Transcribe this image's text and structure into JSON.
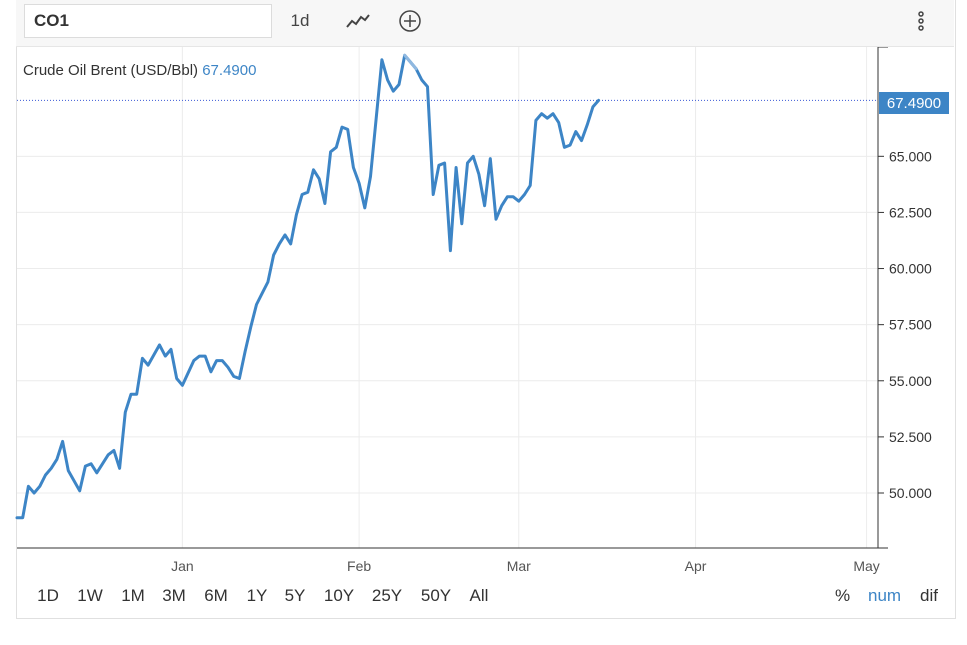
{
  "toolbar": {
    "symbol": "CO1",
    "interval": "1d",
    "chart_type_icon": "line-chart-icon",
    "add_icon": "plus-circle-icon",
    "menu_icon": "vertical-dots-icon"
  },
  "legend": {
    "instrument": "Crude Oil Brent (USD/Bbl)",
    "last_value": "67.4900"
  },
  "price_tag": "67.4900",
  "ranges": [
    "1D",
    "1W",
    "1M",
    "3M",
    "6M",
    "1Y",
    "5Y",
    "10Y",
    "25Y",
    "50Y",
    "All"
  ],
  "modes": {
    "percent": "%",
    "num": "num",
    "dif": "dif"
  },
  "colors": {
    "line": "#3d85c6",
    "line_highlight": "#8fb8e0",
    "grid": "#ececec",
    "price_line": "#3d5ad6"
  },
  "chart_data": {
    "type": "line",
    "title": "Crude Oil Brent (USD/Bbl)",
    "xlabel": "",
    "ylabel": "",
    "x_ticks": [
      {
        "label": "Jan",
        "date": "2021-01-01"
      },
      {
        "label": "Feb",
        "date": "2021-02-01"
      },
      {
        "label": "Mar",
        "date": "2021-03-01"
      },
      {
        "label": "Apr",
        "date": "2021-04-01"
      },
      {
        "label": "May",
        "date": "2021-05-01"
      }
    ],
    "x_range": [
      "2020-12-03",
      "2021-05-03"
    ],
    "y_ticks": [
      "50.000",
      "52.500",
      "55.000",
      "57.500",
      "60.000",
      "62.500",
      "65.000"
    ],
    "ylim": [
      47.55,
      69.87
    ],
    "grid": true,
    "last_price": 67.49,
    "series": [
      {
        "values": [
          [
            "2020-12-03",
            48.9
          ],
          [
            "2020-12-04",
            48.9
          ],
          [
            "2020-12-05",
            50.3
          ],
          [
            "2020-12-06",
            50.0
          ],
          [
            "2020-12-07",
            50.3
          ],
          [
            "2020-12-08",
            50.8
          ],
          [
            "2020-12-09",
            51.1
          ],
          [
            "2020-12-10",
            51.5
          ],
          [
            "2020-12-11",
            52.3
          ],
          [
            "2020-12-12",
            51.0
          ],
          [
            "2020-12-14",
            50.1
          ],
          [
            "2020-12-15",
            51.2
          ],
          [
            "2020-12-16",
            51.3
          ],
          [
            "2020-12-17",
            50.9
          ],
          [
            "2020-12-18",
            51.3
          ],
          [
            "2020-12-19",
            51.7
          ],
          [
            "2020-12-20",
            51.9
          ],
          [
            "2020-12-21",
            51.1
          ],
          [
            "2020-12-22",
            53.6
          ],
          [
            "2020-12-23",
            54.4
          ],
          [
            "2020-12-24",
            54.4
          ],
          [
            "2020-12-25",
            56.0
          ],
          [
            "2020-12-26",
            55.7
          ],
          [
            "2020-12-28",
            56.6
          ],
          [
            "2020-12-29",
            56.1
          ],
          [
            "2020-12-30",
            56.4
          ],
          [
            "2020-12-31",
            55.1
          ],
          [
            "2021-01-01",
            54.8
          ],
          [
            "2021-01-03",
            55.9
          ],
          [
            "2021-01-04",
            56.1
          ],
          [
            "2021-01-05",
            56.1
          ],
          [
            "2021-01-06",
            55.4
          ],
          [
            "2021-01-07",
            55.9
          ],
          [
            "2021-01-08",
            55.9
          ],
          [
            "2021-01-09",
            55.6
          ],
          [
            "2021-01-10",
            55.2
          ],
          [
            "2021-01-11",
            55.1
          ],
          [
            "2021-01-12",
            56.3
          ],
          [
            "2021-01-13",
            57.4
          ],
          [
            "2021-01-14",
            58.4
          ],
          [
            "2021-01-15",
            58.9
          ],
          [
            "2021-01-16",
            59.4
          ],
          [
            "2021-01-17",
            60.6
          ],
          [
            "2021-01-18",
            61.1
          ],
          [
            "2021-01-19",
            61.5
          ],
          [
            "2021-01-20",
            61.1
          ],
          [
            "2021-01-21",
            62.4
          ],
          [
            "2021-01-22",
            63.3
          ],
          [
            "2021-01-23",
            63.4
          ],
          [
            "2021-01-24",
            64.4
          ],
          [
            "2021-01-25",
            64.0
          ],
          [
            "2021-01-26",
            62.9
          ],
          [
            "2021-01-27",
            65.2
          ],
          [
            "2021-01-28",
            65.4
          ],
          [
            "2021-01-29",
            66.3
          ],
          [
            "2021-01-30",
            66.2
          ],
          [
            "2021-01-31",
            64.5
          ],
          [
            "2021-02-01",
            63.8
          ],
          [
            "2021-02-02",
            62.7
          ],
          [
            "2021-02-03",
            64.1
          ],
          [
            "2021-02-04",
            66.7
          ],
          [
            "2021-02-05",
            69.3
          ],
          [
            "2021-02-06",
            68.4
          ],
          [
            "2021-02-07",
            67.9
          ],
          [
            "2021-02-08",
            68.2
          ],
          [
            "2021-02-09",
            69.5
          ],
          [
            "2021-02-10",
            69.2
          ],
          [
            "2021-02-11",
            68.9
          ],
          [
            "2021-02-12",
            68.4
          ],
          [
            "2021-02-13",
            68.1
          ],
          [
            "2021-02-14",
            63.3
          ],
          [
            "2021-02-15",
            64.6
          ],
          [
            "2021-02-16",
            64.7
          ],
          [
            "2021-02-17",
            60.8
          ],
          [
            "2021-02-18",
            64.5
          ],
          [
            "2021-02-19",
            62.0
          ],
          [
            "2021-02-20",
            64.7
          ],
          [
            "2021-02-21",
            65.0
          ],
          [
            "2021-02-22",
            64.2
          ],
          [
            "2021-02-23",
            62.8
          ],
          [
            "2021-02-24",
            64.9
          ],
          [
            "2021-02-25",
            62.2
          ],
          [
            "2021-02-26",
            62.8
          ],
          [
            "2021-02-27",
            63.2
          ],
          [
            "2021-02-28",
            63.2
          ],
          [
            "2021-03-01",
            63.0
          ],
          [
            "2021-03-02",
            63.3
          ],
          [
            "2021-03-03",
            63.7
          ],
          [
            "2021-03-04",
            66.6
          ],
          [
            "2021-03-05",
            66.9
          ],
          [
            "2021-03-06",
            66.7
          ],
          [
            "2021-03-07",
            66.9
          ],
          [
            "2021-03-08",
            66.5
          ],
          [
            "2021-03-09",
            65.4
          ],
          [
            "2021-03-10",
            65.5
          ],
          [
            "2021-03-11",
            66.1
          ],
          [
            "2021-03-12",
            65.7
          ],
          [
            "2021-03-13",
            66.4
          ],
          [
            "2021-03-14",
            67.2
          ],
          [
            "2021-03-15",
            67.49
          ]
        ]
      }
    ]
  }
}
